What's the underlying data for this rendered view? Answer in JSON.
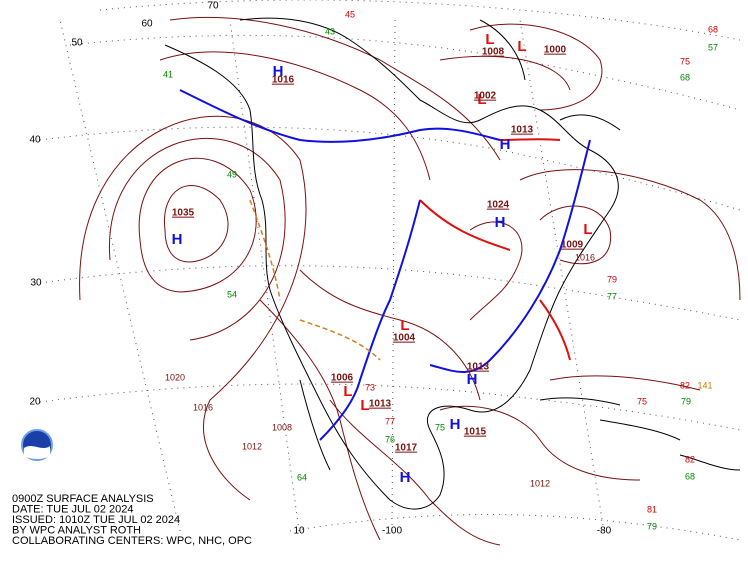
{
  "caption": [
    "0900Z SURFACE ANALYSIS",
    "DATE: TUE JUL 02 2024",
    "ISSUED: 1010Z TUE JUL 02 2024",
    "BY WPC ANALYST ROTH",
    "COLLABORATING CENTERS: WPC, NHC, OPC"
  ],
  "latitude_labels": [
    "70",
    "60",
    "50",
    "40",
    "30",
    "20",
    "10"
  ],
  "longitude_labels": [
    "-100",
    "-80"
  ],
  "pressure_centers": [
    {
      "symbol": "H",
      "value": "1035"
    },
    {
      "symbol": "L",
      "value": "1009"
    },
    {
      "symbol": "H",
      "value": "1015"
    },
    {
      "symbol": "H",
      "value": "1017"
    },
    {
      "symbol": "L",
      "value": "1004"
    },
    {
      "symbol": "L",
      "value": "1006"
    },
    {
      "symbol": "L",
      "value": "1013"
    },
    {
      "symbol": "H",
      "value": "1013"
    },
    {
      "symbol": "H",
      "value": "1024"
    },
    {
      "symbol": "L",
      "value": "1000"
    },
    {
      "symbol": "L",
      "value": "1002"
    },
    {
      "symbol": "H",
      "value": "1016"
    },
    {
      "symbol": "L",
      "value": "1008"
    },
    {
      "symbol": "H",
      "value": "1013"
    }
  ],
  "station_values": [
    "68",
    "57",
    "75",
    "68",
    "79",
    "77",
    "82",
    "141",
    "75",
    "79",
    "82",
    "68",
    "81",
    "79",
    "1020",
    "1016",
    "1012",
    "1008",
    "45",
    "43",
    "41",
    "49",
    "54",
    "64",
    "73",
    "77",
    "76",
    "75",
    "1012",
    "1016"
  ]
}
